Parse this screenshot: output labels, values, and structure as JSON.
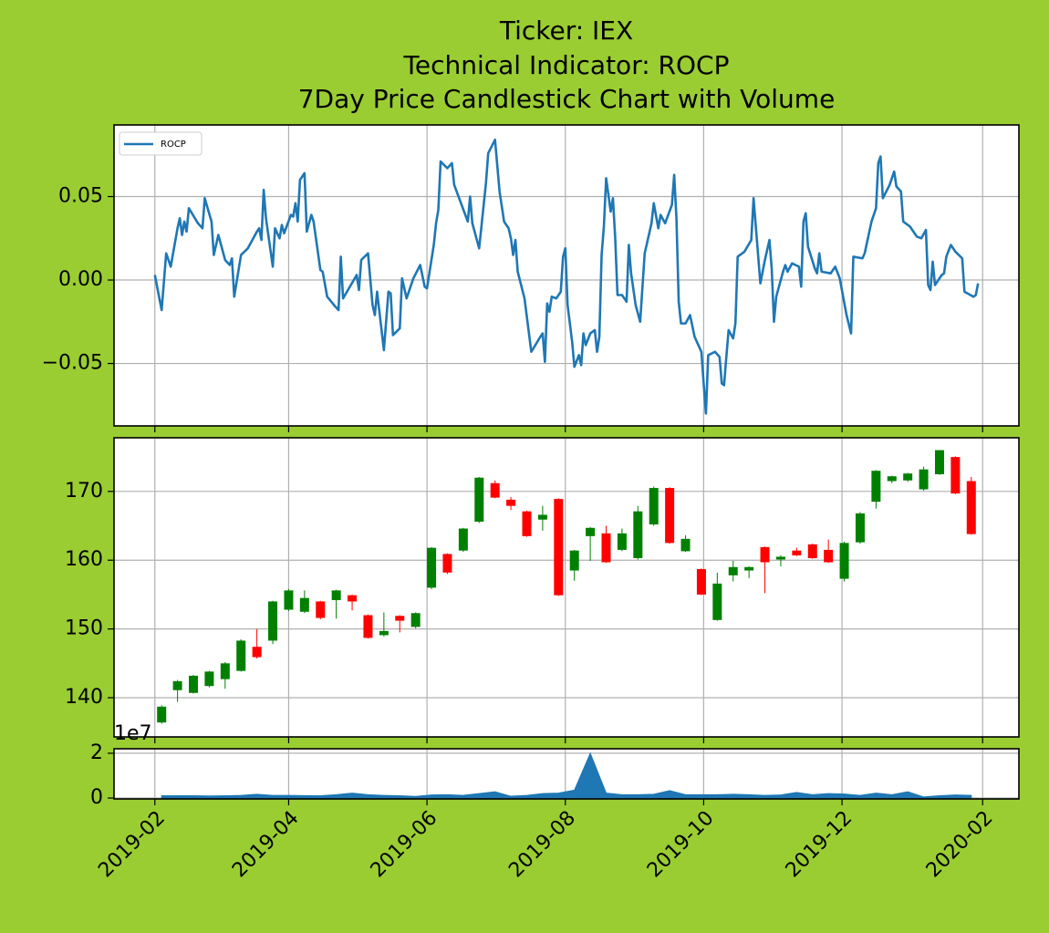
{
  "chart_data": [
    {
      "type": "line",
      "title": [
        "Ticker: IEX",
        "Technical Indicator: ROCP",
        "7Day Price Candlestick Chart with Volume"
      ],
      "ylim": [
        -0.0874,
        0.0929
      ],
      "yticks": [
        {
          "value": -0.05,
          "label": "−0.05"
        },
        {
          "value": 0,
          "label": "0.00"
        },
        0.05
      ],
      "grid": true,
      "legend": "upper left",
      "series": [
        {
          "name": "ROCP",
          "color": "#1f77b4",
          "x": [
            "2019-02-01",
            "2019-02-04",
            "2019-02-06",
            "2019-02-08",
            "2019-02-11",
            "2019-02-12",
            "2019-02-13",
            "2019-02-14",
            "2019-02-15",
            "2019-02-16",
            "2019-02-20",
            "2019-02-22",
            "2019-02-23",
            "2019-02-26",
            "2019-02-27",
            "2019-03-01",
            "2019-03-04",
            "2019-03-06",
            "2019-03-07",
            "2019-03-08",
            "2019-03-11",
            "2019-03-14",
            "2019-03-18",
            "2019-03-19",
            "2019-03-20",
            "2019-03-21",
            "2019-03-22",
            "2019-03-25",
            "2019-03-26",
            "2019-03-28",
            "2019-03-29",
            "2019-03-30",
            "2019-04-02",
            "2019-04-03",
            "2019-04-04",
            "2019-04-05",
            "2019-04-06",
            "2019-04-08",
            "2019-04-09",
            "2019-04-11",
            "2019-04-12",
            "2019-04-15",
            "2019-04-16",
            "2019-04-18",
            "2019-04-21",
            "2019-04-23",
            "2019-04-24",
            "2019-04-25",
            "2019-04-28",
            "2019-05-01",
            "2019-05-02",
            "2019-05-03",
            "2019-05-06",
            "2019-05-08",
            "2019-05-09",
            "2019-05-10",
            "2019-05-13",
            "2019-05-15",
            "2019-05-16",
            "2019-05-17",
            "2019-05-20",
            "2019-05-21",
            "2019-05-23",
            "2019-05-26",
            "2019-05-29",
            "2019-05-31",
            "2019-06-01",
            "2019-06-04",
            "2019-06-05",
            "2019-06-06",
            "2019-06-07",
            "2019-06-10",
            "2019-06-12",
            "2019-06-13",
            "2019-06-16",
            "2019-06-19",
            "2019-06-20",
            "2019-06-21",
            "2019-06-24",
            "2019-06-25",
            "2019-06-27",
            "2019-06-28",
            "2019-07-01",
            "2019-07-03",
            "2019-07-05",
            "2019-07-07",
            "2019-07-08",
            "2019-07-09",
            "2019-07-10",
            "2019-07-11",
            "2019-07-14",
            "2019-07-17",
            "2019-07-21",
            "2019-07-22",
            "2019-07-23",
            "2019-07-24",
            "2019-07-25",
            "2019-07-26",
            "2019-07-28",
            "2019-07-30",
            "2019-07-31",
            "2019-08-01",
            "2019-08-02",
            "2019-08-04",
            "2019-08-05",
            "2019-08-07",
            "2019-08-08",
            "2019-08-09",
            "2019-08-10",
            "2019-08-12",
            "2019-08-14",
            "2019-08-15",
            "2019-08-16",
            "2019-08-17",
            "2019-08-18",
            "2019-08-19",
            "2019-08-21",
            "2019-08-22",
            "2019-08-23",
            "2019-08-24",
            "2019-08-26",
            "2019-08-28",
            "2019-08-29",
            "2019-08-30",
            "2019-09-01",
            "2019-09-03",
            "2019-09-05",
            "2019-09-08",
            "2019-09-09",
            "2019-09-11",
            "2019-09-12",
            "2019-09-14",
            "2019-09-17",
            "2019-09-18",
            "2019-09-19",
            "2019-09-20",
            "2019-09-21",
            "2019-09-23",
            "2019-09-25",
            "2019-09-27",
            "2019-09-30",
            "2019-10-01",
            "2019-10-02",
            "2019-10-03",
            "2019-10-06",
            "2019-10-08",
            "2019-10-09",
            "2019-10-10",
            "2019-10-11",
            "2019-10-12",
            "2019-10-14",
            "2019-10-15",
            "2019-10-16",
            "2019-10-19",
            "2019-10-22",
            "2019-10-23",
            "2019-10-24",
            "2019-10-26",
            "2019-10-28",
            "2019-10-30",
            "2019-10-31",
            "2019-11-01",
            "2019-11-02",
            "2019-11-05",
            "2019-11-06",
            "2019-11-07",
            "2019-11-09",
            "2019-11-12",
            "2019-11-13",
            "2019-11-14",
            "2019-11-15",
            "2019-11-16",
            "2019-11-19",
            "2019-11-20",
            "2019-11-21",
            "2019-11-22",
            "2019-11-26",
            "2019-11-28",
            "2019-11-30",
            "2019-12-03",
            "2019-12-05",
            "2019-12-06",
            "2019-12-10",
            "2019-12-11",
            "2019-12-14",
            "2019-12-16",
            "2019-12-17",
            "2019-12-18",
            "2019-12-19",
            "2019-12-22",
            "2019-12-24",
            "2019-12-25",
            "2019-12-27",
            "2019-12-28",
            "2019-12-31",
            "2020-01-03",
            "2020-01-05",
            "2020-01-07",
            "2020-01-08",
            "2020-01-09",
            "2020-01-10",
            "2020-01-11",
            "2020-01-14",
            "2020-01-15",
            "2020-01-16",
            "2020-01-18",
            "2020-01-20",
            "2020-01-23",
            "2020-01-24",
            "2020-01-28",
            "2020-01-29",
            "2020-01-30"
          ],
          "values": [
            0.003,
            -0.018,
            0.016,
            0.008,
            0.031,
            0.037,
            0.027,
            0.035,
            0.029,
            0.043,
            0.034,
            0.031,
            0.049,
            0.035,
            0.015,
            0.027,
            0.012,
            0.009,
            0.013,
            -0.01,
            0.015,
            0.019,
            0.029,
            0.031,
            0.024,
            0.054,
            0.037,
            0.008,
            0.031,
            0.025,
            0.033,
            0.028,
            0.039,
            0.038,
            0.046,
            0.035,
            0.06,
            0.064,
            0.029,
            0.039,
            0.035,
            0.006,
            0.005,
            -0.01,
            -0.015,
            -0.018,
            0.014,
            -0.011,
            -0.004,
            0.003,
            -0.006,
            0.012,
            0.016,
            -0.015,
            -0.021,
            -0.007,
            -0.042,
            -0.007,
            -0.008,
            -0.033,
            -0.029,
            0.001,
            -0.011,
            0.001,
            0.009,
            -0.004,
            -0.005,
            0.021,
            0.034,
            0.042,
            0.071,
            0.067,
            0.07,
            0.057,
            0.046,
            0.035,
            0.05,
            0.034,
            0.019,
            0.032,
            0.058,
            0.076,
            0.084,
            0.053,
            0.035,
            0.031,
            0.025,
            0.015,
            0.024,
            0.005,
            -0.011,
            -0.043,
            -0.034,
            -0.032,
            -0.049,
            -0.014,
            -0.019,
            -0.01,
            -0.011,
            -0.007,
            0.014,
            0.019,
            -0.015,
            -0.037,
            -0.052,
            -0.045,
            -0.051,
            -0.032,
            -0.039,
            -0.032,
            -0.03,
            -0.043,
            -0.034,
            0.015,
            0.032,
            0.061,
            0.041,
            0.049,
            0.025,
            -0.009,
            -0.009,
            -0.013,
            0.021,
            0.004,
            -0.015,
            -0.025,
            0.016,
            0.034,
            0.046,
            0.031,
            0.039,
            0.034,
            0.045,
            0.063,
            0.037,
            -0.013,
            -0.026,
            -0.026,
            -0.021,
            -0.034,
            -0.043,
            -0.062,
            -0.08,
            -0.045,
            -0.043,
            -0.046,
            -0.062,
            -0.063,
            -0.046,
            -0.03,
            -0.035,
            -0.026,
            0.014,
            0.017,
            0.024,
            0.049,
            0.032,
            -0.002,
            0.012,
            0.024,
            0.007,
            -0.025,
            -0.01,
            0.005,
            0.009,
            0.005,
            0.01,
            0.008,
            -0.004,
            0.035,
            0.04,
            0.02,
            0.007,
            0.004,
            0.016,
            0.005,
            0.004,
            0.008,
            0.001,
            -0.021,
            -0.032,
            0.014,
            0.013,
            0.016,
            0.035,
            0.043,
            0.07,
            0.074,
            0.049,
            0.057,
            0.065,
            0.056,
            0.053,
            0.035,
            0.032,
            0.026,
            0.025,
            0.03,
            -0.003,
            -0.006,
            0.011,
            -0.003,
            0.003,
            0.004,
            0.014,
            0.021,
            0.017,
            0.013,
            -0.007,
            -0.01,
            -0.009,
            -0.002
          ]
        }
      ]
    },
    {
      "type": "candlestick",
      "ylim": [
        134.3,
        177.8
      ],
      "yticks": [
        140,
        150,
        160,
        170
      ],
      "grid": true,
      "up_color": "#008000",
      "down_color": "#ff0000",
      "x": [
        "2019-02-04",
        "2019-02-11",
        "2019-02-18",
        "2019-02-25",
        "2019-03-04",
        "2019-03-11",
        "2019-03-18",
        "2019-03-25",
        "2019-04-01",
        "2019-04-08",
        "2019-04-15",
        "2019-04-22",
        "2019-04-29",
        "2019-05-06",
        "2019-05-13",
        "2019-05-20",
        "2019-05-27",
        "2019-06-03",
        "2019-06-10",
        "2019-06-17",
        "2019-06-24",
        "2019-07-01",
        "2019-07-08",
        "2019-07-15",
        "2019-07-22",
        "2019-07-29",
        "2019-08-05",
        "2019-08-12",
        "2019-08-19",
        "2019-08-26",
        "2019-09-02",
        "2019-09-09",
        "2019-09-16",
        "2019-09-23",
        "2019-09-30",
        "2019-10-07",
        "2019-10-14",
        "2019-10-21",
        "2019-10-28",
        "2019-11-04",
        "2019-11-11",
        "2019-11-18",
        "2019-11-25",
        "2019-12-02",
        "2019-12-09",
        "2019-12-16",
        "2019-12-23",
        "2019-12-30",
        "2020-01-06",
        "2020-01-13",
        "2020-01-20",
        "2020-01-27"
      ],
      "open": [
        136.4,
        141.1,
        140.7,
        141.7,
        142.7,
        143.9,
        147.4,
        148.3,
        152.8,
        152.5,
        154.0,
        154.2,
        154.9,
        152.0,
        149.1,
        151.9,
        150.3,
        156.0,
        160.9,
        161.4,
        165.6,
        171.2,
        168.8,
        167.1,
        165.9,
        168.9,
        158.5,
        163.5,
        163.9,
        161.5,
        160.3,
        165.2,
        170.5,
        161.3,
        158.7,
        151.3,
        157.8,
        158.5,
        161.9,
        160.1,
        161.4,
        162.3,
        161.5,
        157.3,
        162.6,
        168.5,
        171.5,
        171.6,
        170.3,
        172.5,
        175.0,
        171.5
      ],
      "high": [
        138.9,
        142.6,
        143.3,
        143.9,
        145.2,
        148.5,
        150.0,
        154.1,
        155.8,
        155.6,
        154.1,
        155.7,
        155.0,
        152.1,
        152.4,
        152.0,
        152.4,
        161.9,
        161.0,
        164.7,
        172.1,
        171.6,
        169.2,
        167.2,
        167.9,
        169.0,
        161.5,
        164.8,
        165.0,
        164.6,
        167.9,
        170.7,
        170.6,
        163.6,
        158.8,
        158.2,
        159.9,
        159.1,
        162.0,
        160.7,
        161.8,
        162.4,
        163.0,
        162.7,
        167.0,
        173.1,
        172.3,
        172.7,
        173.6,
        176.0,
        175.1,
        172.1
      ],
      "low": [
        136.2,
        139.4,
        140.6,
        141.5,
        141.3,
        143.8,
        145.7,
        147.8,
        152.6,
        152.3,
        151.4,
        151.5,
        152.7,
        148.6,
        148.9,
        149.5,
        150.1,
        155.8,
        158.0,
        161.2,
        165.4,
        169.0,
        167.3,
        163.4,
        164.3,
        154.8,
        157.0,
        159.9,
        159.6,
        161.3,
        160.1,
        165.0,
        162.4,
        161.2,
        154.9,
        151.2,
        156.9,
        157.4,
        155.2,
        159.1,
        160.6,
        160.2,
        159.6,
        156.9,
        162.4,
        167.5,
        171.2,
        171.4,
        170.1,
        172.4,
        169.6,
        163.7
      ],
      "close": [
        138.7,
        142.4,
        143.2,
        143.8,
        145.0,
        148.3,
        145.9,
        154.0,
        155.6,
        154.5,
        151.6,
        155.6,
        154.0,
        148.7,
        149.7,
        151.2,
        152.3,
        161.8,
        158.2,
        164.6,
        172.0,
        169.1,
        167.9,
        163.5,
        166.6,
        154.9,
        161.4,
        164.7,
        159.7,
        163.9,
        167.1,
        170.5,
        162.5,
        163.1,
        155.0,
        156.6,
        159.0,
        159.0,
        159.7,
        160.5,
        160.7,
        160.3,
        159.7,
        162.5,
        166.8,
        173.0,
        172.2,
        172.6,
        173.2,
        176.0,
        169.7,
        163.8
      ]
    },
    {
      "type": "area",
      "xlim": [
        "2019-01-14",
        "2020-02-17"
      ],
      "xticks": [
        "2019-02",
        "2019-04",
        "2019-06",
        "2019-08",
        "2019-10",
        "2019-12",
        "2020-02"
      ],
      "ylim": [
        -0.04,
        2.2
      ],
      "yticks": [
        0,
        2
      ],
      "offset_label": "1e7",
      "grid": true,
      "color": "#1f77b4",
      "x": [
        "2019-02-04",
        "2019-02-11",
        "2019-02-18",
        "2019-02-25",
        "2019-03-04",
        "2019-03-11",
        "2019-03-18",
        "2019-03-25",
        "2019-04-01",
        "2019-04-08",
        "2019-04-15",
        "2019-04-22",
        "2019-04-29",
        "2019-05-06",
        "2019-05-13",
        "2019-05-20",
        "2019-05-27",
        "2019-06-03",
        "2019-06-10",
        "2019-06-17",
        "2019-06-24",
        "2019-07-01",
        "2019-07-08",
        "2019-07-15",
        "2019-07-22",
        "2019-07-29",
        "2019-08-05",
        "2019-08-12",
        "2019-08-19",
        "2019-08-26",
        "2019-09-02",
        "2019-09-09",
        "2019-09-16",
        "2019-09-23",
        "2019-09-30",
        "2019-10-07",
        "2019-10-14",
        "2019-10-21",
        "2019-10-28",
        "2019-11-04",
        "2019-11-11",
        "2019-11-18",
        "2019-11-25",
        "2019-12-02",
        "2019-12-09",
        "2019-12-16",
        "2019-12-23",
        "2019-12-30",
        "2020-01-06",
        "2020-01-13",
        "2020-01-20",
        "2020-01-27"
      ],
      "values": [
        0.1,
        0.1,
        0.1,
        0.09,
        0.1,
        0.12,
        0.17,
        0.12,
        0.12,
        0.11,
        0.1,
        0.15,
        0.22,
        0.15,
        0.12,
        0.1,
        0.07,
        0.14,
        0.15,
        0.12,
        0.2,
        0.28,
        0.08,
        0.12,
        0.2,
        0.22,
        0.35,
        2.0,
        0.22,
        0.15,
        0.15,
        0.17,
        0.33,
        0.15,
        0.15,
        0.15,
        0.17,
        0.15,
        0.12,
        0.14,
        0.25,
        0.15,
        0.2,
        0.18,
        0.12,
        0.22,
        0.15,
        0.28,
        0.05,
        0.1,
        0.14,
        0.12
      ]
    }
  ]
}
